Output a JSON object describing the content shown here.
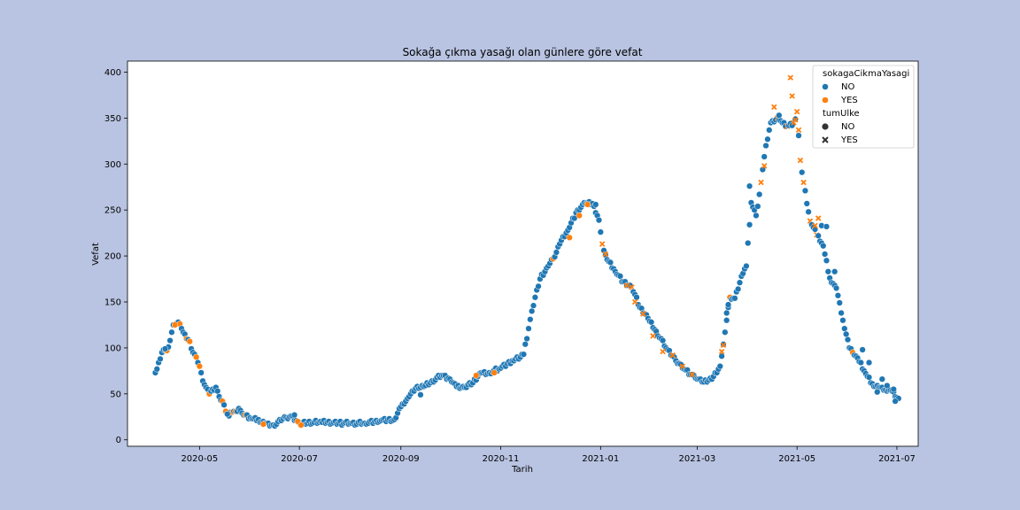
{
  "chart_data": {
    "type": "scatter",
    "title": "Sokağa çıkma yasağı olan günlere göre vefat",
    "xlabel": "Tarih",
    "ylabel": "Vefat",
    "xlim": [
      "2020-03-18",
      "2021-07-14"
    ],
    "ylim": [
      -7,
      412
    ],
    "x_ticks": [
      "2020-05",
      "2020-07",
      "2020-09",
      "2020-11",
      "2021-01",
      "2021-03",
      "2021-05",
      "2021-07"
    ],
    "y_ticks": [
      0,
      50,
      100,
      150,
      200,
      250,
      300,
      350,
      400
    ],
    "grid": false,
    "legend": {
      "placement": "top-right",
      "hue_title": "sokagaCikmaYasagi",
      "hue_entries": [
        {
          "label": "NO",
          "color": "#1f77b4"
        },
        {
          "label": "YES",
          "color": "#ff7f0e"
        }
      ],
      "style_title": "tumUlke",
      "style_entries": [
        {
          "label": "NO",
          "marker": "circle"
        },
        {
          "label": "YES",
          "marker": "x"
        }
      ]
    },
    "colors": {
      "NO": "#1f77b4",
      "YES": "#ff7f0e"
    },
    "series_keys": [
      "sokagaCikmaYasagi",
      "tumUlke"
    ],
    "anchors": [
      [
        "2020-04-04",
        73,
        "NO",
        "NO"
      ],
      [
        "2020-04-07",
        88,
        "NO",
        "NO"
      ],
      [
        "2020-04-09",
        98,
        "NO",
        "NO"
      ],
      [
        "2020-04-11",
        97,
        "YES",
        "NO"
      ],
      [
        "2020-04-13",
        108,
        "NO",
        "NO"
      ],
      [
        "2020-04-15",
        125,
        "NO",
        "NO"
      ],
      [
        "2020-04-17",
        127,
        "YES",
        "NO"
      ],
      [
        "2020-04-19",
        126,
        "YES",
        "NO"
      ],
      [
        "2020-04-21",
        117,
        "NO",
        "NO"
      ],
      [
        "2020-04-23",
        110,
        "YES",
        "NO"
      ],
      [
        "2020-04-25",
        107,
        "YES",
        "NO"
      ],
      [
        "2020-04-27",
        95,
        "NO",
        "NO"
      ],
      [
        "2020-04-29",
        90,
        "YES",
        "NO"
      ],
      [
        "2020-05-01",
        80,
        "YES",
        "NO"
      ],
      [
        "2020-05-03",
        64,
        "NO",
        "NO"
      ],
      [
        "2020-05-05",
        57,
        "NO",
        "NO"
      ],
      [
        "2020-05-07",
        50,
        "YES",
        "NO"
      ],
      [
        "2020-05-09",
        55,
        "NO",
        "NO"
      ],
      [
        "2020-05-11",
        57,
        "NO",
        "NO"
      ],
      [
        "2020-05-13",
        47,
        "NO",
        "NO"
      ],
      [
        "2020-05-15",
        42,
        "YES",
        "NO"
      ],
      [
        "2020-05-17",
        31,
        "YES",
        "NO"
      ],
      [
        "2020-05-19",
        26,
        "NO",
        "NO"
      ],
      [
        "2020-05-21",
        30,
        "YES",
        "NO"
      ],
      [
        "2020-05-23",
        31,
        "YES",
        "NO"
      ],
      [
        "2020-05-25",
        34,
        "NO",
        "NO"
      ],
      [
        "2020-05-27",
        29,
        "NO",
        "NO"
      ],
      [
        "2020-05-29",
        27,
        "YES",
        "NO"
      ],
      [
        "2020-06-01",
        24,
        "NO",
        "NO"
      ],
      [
        "2020-06-05",
        21,
        "NO",
        "NO"
      ],
      [
        "2020-06-10",
        18,
        "NO",
        "NO"
      ],
      [
        "2020-06-15",
        16,
        "NO",
        "NO"
      ],
      [
        "2020-06-20",
        21,
        "NO",
        "NO"
      ],
      [
        "2020-06-23",
        24,
        "NO",
        "NO"
      ],
      [
        "2020-06-26",
        26,
        "NO",
        "NO"
      ],
      [
        "2020-07-01",
        18,
        "NO",
        "NO"
      ],
      [
        "2020-07-15",
        19,
        "NO",
        "NO"
      ],
      [
        "2020-08-01",
        18,
        "NO",
        "NO"
      ],
      [
        "2020-08-10",
        18,
        "NO",
        "NO"
      ],
      [
        "2020-08-20",
        21,
        "NO",
        "NO"
      ],
      [
        "2020-08-28",
        22,
        "NO",
        "NO"
      ],
      [
        "2020-09-01",
        36,
        "NO",
        "NO"
      ],
      [
        "2020-09-05",
        45,
        "NO",
        "NO"
      ],
      [
        "2020-09-10",
        56,
        "NO",
        "NO"
      ],
      [
        "2020-09-15",
        58,
        "NO",
        "NO"
      ],
      [
        "2020-09-20",
        64,
        "NO",
        "NO"
      ],
      [
        "2020-09-26",
        70,
        "NO",
        "NO"
      ],
      [
        "2020-10-01",
        66,
        "NO",
        "NO"
      ],
      [
        "2020-10-05",
        58,
        "NO",
        "NO"
      ],
      [
        "2020-10-10",
        57,
        "NO",
        "NO"
      ],
      [
        "2020-10-15",
        62,
        "NO",
        "NO"
      ],
      [
        "2020-10-20",
        73,
        "NO",
        "NO"
      ],
      [
        "2020-10-25",
        73,
        "NO",
        "NO"
      ],
      [
        "2020-11-01",
        78,
        "NO",
        "NO"
      ],
      [
        "2020-11-08",
        86,
        "NO",
        "NO"
      ],
      [
        "2020-11-15",
        93,
        "NO",
        "NO"
      ],
      [
        "2020-11-20",
        140,
        "NO",
        "NO"
      ],
      [
        "2020-11-25",
        175,
        "NO",
        "NO"
      ],
      [
        "2020-11-30",
        189,
        "NO",
        "NO"
      ],
      [
        "2020-12-03",
        197,
        "YES",
        "NO"
      ],
      [
        "2020-12-07",
        213,
        "NO",
        "NO"
      ],
      [
        "2020-12-12",
        228,
        "NO",
        "NO"
      ],
      [
        "2020-12-17",
        247,
        "NO",
        "NO"
      ],
      [
        "2020-12-22",
        258,
        "NO",
        "NO"
      ],
      [
        "2020-12-27",
        257,
        "NO",
        "NO"
      ],
      [
        "2020-12-31",
        239,
        "NO",
        "NO"
      ],
      [
        "2021-01-02",
        213,
        "YES",
        "YES"
      ],
      [
        "2021-01-05",
        196,
        "NO",
        "NO"
      ],
      [
        "2021-01-10",
        183,
        "NO",
        "NO"
      ],
      [
        "2021-01-15",
        172,
        "NO",
        "NO"
      ],
      [
        "2021-01-20",
        166,
        "YES",
        "YES"
      ],
      [
        "2021-01-25",
        144,
        "NO",
        "NO"
      ],
      [
        "2021-01-30",
        132,
        "NO",
        "NO"
      ],
      [
        "2021-02-04",
        118,
        "NO",
        "NO"
      ],
      [
        "2021-02-10",
        100,
        "NO",
        "NO"
      ],
      [
        "2021-02-16",
        86,
        "NO",
        "NO"
      ],
      [
        "2021-02-22",
        76,
        "NO",
        "NO"
      ],
      [
        "2021-02-28",
        67,
        "NO",
        "NO"
      ],
      [
        "2021-03-05",
        63,
        "NO",
        "NO"
      ],
      [
        "2021-03-10",
        66,
        "NO",
        "NO"
      ],
      [
        "2021-03-15",
        80,
        "NO",
        "NO"
      ],
      [
        "2021-03-18",
        117,
        "NO",
        "NO"
      ],
      [
        "2021-03-21",
        155,
        "YES",
        "NO"
      ],
      [
        "2021-03-24",
        154,
        "NO",
        "NO"
      ],
      [
        "2021-03-28",
        178,
        "NO",
        "NO"
      ],
      [
        "2021-03-31",
        189,
        "NO",
        "NO"
      ],
      [
        "2021-04-03",
        258,
        "NO",
        "NO"
      ],
      [
        "2021-04-06",
        244,
        "NO",
        "NO"
      ],
      [
        "2021-04-09",
        280,
        "YES",
        "YES"
      ],
      [
        "2021-04-12",
        320,
        "NO",
        "NO"
      ],
      [
        "2021-04-15",
        345,
        "NO",
        "NO"
      ],
      [
        "2021-04-19",
        350,
        "YES",
        "YES"
      ],
      [
        "2021-04-22",
        345,
        "NO",
        "NO"
      ],
      [
        "2021-04-25",
        341,
        "YES",
        "YES"
      ],
      [
        "2021-04-29",
        345,
        "YES",
        "YES"
      ],
      [
        "2021-05-01",
        357,
        "YES",
        "YES"
      ],
      [
        "2021-05-03",
        304,
        "YES",
        "YES"
      ],
      [
        "2021-05-05",
        280,
        "YES",
        "YES"
      ],
      [
        "2021-05-09",
        238,
        "YES",
        "YES"
      ],
      [
        "2021-05-13",
        223,
        "YES",
        "YES"
      ],
      [
        "2021-05-17",
        211,
        "NO",
        "NO"
      ],
      [
        "2021-05-21",
        176,
        "NO",
        "NO"
      ],
      [
        "2021-05-25",
        165,
        "NO",
        "NO"
      ],
      [
        "2021-05-29",
        130,
        "NO",
        "NO"
      ],
      [
        "2021-06-02",
        100,
        "NO",
        "NO"
      ],
      [
        "2021-06-04",
        95,
        "YES",
        "NO"
      ],
      [
        "2021-06-08",
        85,
        "NO",
        "NO"
      ],
      [
        "2021-06-12",
        72,
        "NO",
        "NO"
      ],
      [
        "2021-06-16",
        61,
        "NO",
        "NO"
      ],
      [
        "2021-06-20",
        57,
        "NO",
        "NO"
      ],
      [
        "2021-06-24",
        54,
        "NO",
        "NO"
      ],
      [
        "2021-06-28",
        53,
        "NO",
        "NO"
      ],
      [
        "2021-07-02",
        45,
        "NO",
        "NO"
      ]
    ],
    "extra_points": [
      [
        "2020-04-16",
        125,
        "YES",
        "NO"
      ],
      [
        "2021-04-17",
        362,
        "YES",
        "YES"
      ],
      [
        "2021-04-27",
        394,
        "YES",
        "YES"
      ],
      [
        "2021-04-28",
        374,
        "YES",
        "YES"
      ],
      [
        "2021-04-30",
        348,
        "YES",
        "YES"
      ],
      [
        "2021-05-02",
        337,
        "YES",
        "YES"
      ],
      [
        "2021-04-20",
        353,
        "NO",
        "NO"
      ],
      [
        "2021-04-11",
        298,
        "YES",
        "YES"
      ],
      [
        "2021-04-02",
        276,
        "NO",
        "NO"
      ],
      [
        "2021-05-16",
        233,
        "NO",
        "NO"
      ],
      [
        "2021-05-19",
        232,
        "NO",
        "NO"
      ],
      [
        "2021-05-24",
        183,
        "NO",
        "NO"
      ],
      [
        "2021-05-12",
        233,
        "YES",
        "YES"
      ],
      [
        "2021-05-14",
        241,
        "YES",
        "YES"
      ],
      [
        "2021-06-10",
        98,
        "NO",
        "NO"
      ],
      [
        "2021-06-14",
        84,
        "NO",
        "NO"
      ],
      [
        "2021-06-19",
        52,
        "NO",
        "NO"
      ],
      [
        "2021-06-22",
        66,
        "NO",
        "NO"
      ],
      [
        "2021-06-25",
        59,
        "NO",
        "NO"
      ],
      [
        "2021-06-29",
        55,
        "NO",
        "NO"
      ],
      [
        "2021-06-30",
        42,
        "NO",
        "NO"
      ],
      [
        "2020-12-29",
        256,
        "NO",
        "NO"
      ],
      [
        "2020-12-24",
        256,
        "YES",
        "NO"
      ],
      [
        "2020-12-19",
        244,
        "YES",
        "NO"
      ],
      [
        "2020-12-13",
        220,
        "YES",
        "NO"
      ],
      [
        "2021-01-04",
        202,
        "YES",
        "YES"
      ],
      [
        "2021-03-20",
        147,
        "NO",
        "NO"
      ],
      [
        "2021-03-19",
        138,
        "NO",
        "NO"
      ],
      [
        "2021-03-16",
        96,
        "YES",
        "YES"
      ],
      [
        "2021-03-17",
        103,
        "YES",
        "YES"
      ],
      [
        "2021-01-17",
        168,
        "YES",
        "YES"
      ],
      [
        "2021-01-22",
        150,
        "YES",
        "YES"
      ],
      [
        "2021-01-27",
        137,
        "YES",
        "YES"
      ],
      [
        "2021-02-02",
        113,
        "YES",
        "YES"
      ],
      [
        "2021-02-08",
        96,
        "YES",
        "YES"
      ],
      [
        "2021-02-14",
        92,
        "YES",
        "YES"
      ],
      [
        "2021-02-20",
        80,
        "YES",
        "YES"
      ],
      [
        "2021-02-26",
        71,
        "YES",
        "YES"
      ],
      [
        "2020-04-10",
        99,
        "NO",
        "NO"
      ],
      [
        "2020-05-18",
        28,
        "NO",
        "NO"
      ],
      [
        "2020-09-13",
        49,
        "NO",
        "NO"
      ],
      [
        "2020-06-28",
        27,
        "NO",
        "NO"
      ],
      [
        "2020-10-17",
        70,
        "YES",
        "NO"
      ],
      [
        "2020-10-28",
        73,
        "YES",
        "NO"
      ],
      [
        "2020-06-09",
        17,
        "YES",
        "NO"
      ],
      [
        "2020-06-30",
        20,
        "YES",
        "NO"
      ],
      [
        "2020-07-02",
        16,
        "YES",
        "NO"
      ]
    ]
  }
}
